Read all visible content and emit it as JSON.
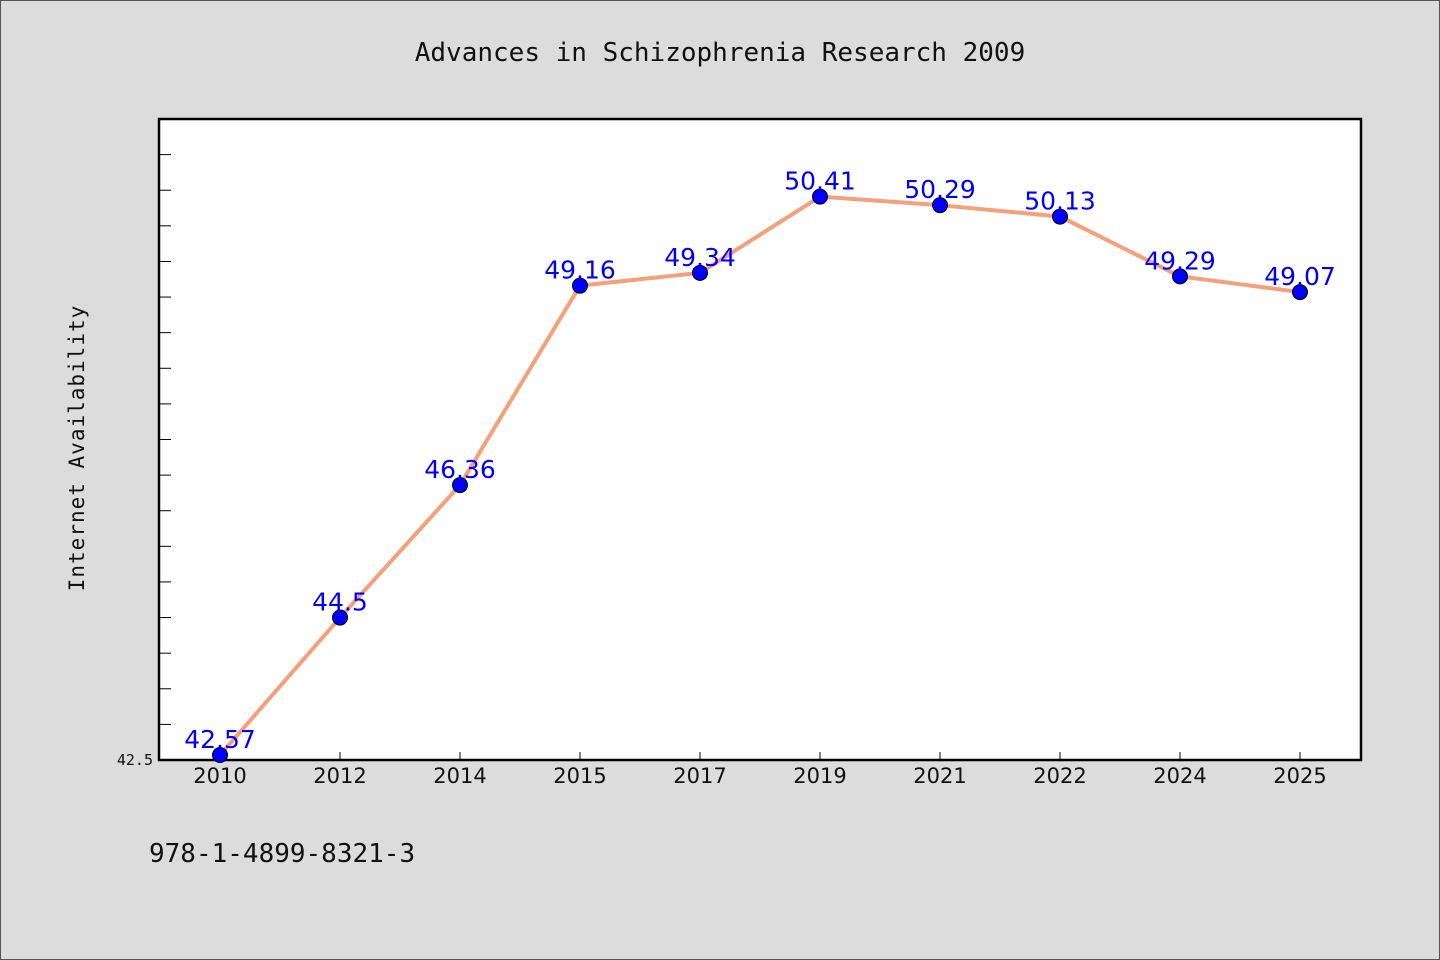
{
  "chart_data": {
    "type": "line",
    "title": "Advances in Schizophrenia Research 2009",
    "xlabel": "",
    "ylabel": "Internet Availability",
    "categories": [
      "2010",
      "2012",
      "2014",
      "2015",
      "2017",
      "2019",
      "2021",
      "2022",
      "2024",
      "2025"
    ],
    "series": [
      {
        "values": [
          42.57,
          44.5,
          46.36,
          49.16,
          49.34,
          50.41,
          50.29,
          50.13,
          49.29,
          49.07
        ],
        "data_labels": [
          "42.57",
          "44.5",
          "46.36",
          "49.16",
          "49.34",
          "50.41",
          "50.29",
          "50.13",
          "49.29",
          "49.07"
        ],
        "line_color": "#f4a07a",
        "marker_color": "#0000ff"
      }
    ],
    "ylim": [
      42.5,
      51.5
    ],
    "yticks_labeled": [
      "42.5"
    ],
    "grid": false,
    "legend": "none"
  },
  "footnote": "978-1-4899-8321-3",
  "colors": {
    "background": "#dcdcdc",
    "plot_background": "#ffffff",
    "axis": "#000000",
    "label": "#0000ff"
  }
}
